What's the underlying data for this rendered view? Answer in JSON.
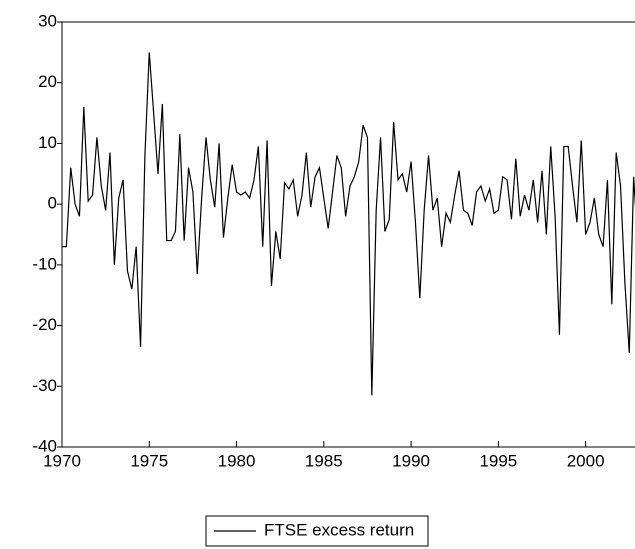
{
  "chart_data": {
    "type": "line",
    "x": [
      1970,
      1970.25,
      1970.5,
      1970.75,
      1971,
      1971.25,
      1971.5,
      1971.75,
      1972,
      1972.25,
      1972.5,
      1972.75,
      1973,
      1973.25,
      1973.5,
      1973.75,
      1974,
      1974.25,
      1974.5,
      1974.75,
      1975,
      1975.25,
      1975.5,
      1975.75,
      1976,
      1976.25,
      1976.5,
      1976.75,
      1977,
      1977.25,
      1977.5,
      1977.75,
      1978,
      1978.25,
      1978.5,
      1978.75,
      1979,
      1979.25,
      1979.5,
      1979.75,
      1980,
      1980.25,
      1980.5,
      1980.75,
      1981,
      1981.25,
      1981.5,
      1981.75,
      1982,
      1982.25,
      1982.5,
      1982.75,
      1983,
      1983.25,
      1983.5,
      1983.75,
      1984,
      1984.25,
      1984.5,
      1984.75,
      1985,
      1985.25,
      1985.5,
      1985.75,
      1986,
      1986.25,
      1986.5,
      1986.75,
      1987,
      1987.25,
      1987.5,
      1987.75,
      1988,
      1988.25,
      1988.5,
      1988.75,
      1989,
      1989.25,
      1989.5,
      1989.75,
      1990,
      1990.25,
      1990.5,
      1990.75,
      1991,
      1991.25,
      1991.5,
      1991.75,
      1992,
      1992.25,
      1992.5,
      1992.75,
      1993,
      1993.25,
      1993.5,
      1993.75,
      1994,
      1994.25,
      1994.5,
      1994.75,
      1995,
      1995.25,
      1995.5,
      1995.75,
      1996,
      1996.25,
      1996.5,
      1996.75,
      1997,
      1997.25,
      1997.5,
      1997.75,
      1998,
      1998.25,
      1998.5,
      1998.75,
      1999,
      1999.25,
      1999.5,
      1999.75,
      2000,
      2000.25,
      2000.5,
      2000.75,
      2001,
      2001.25,
      2001.5,
      2001.75,
      2002,
      2002.25,
      2002.5,
      2002.75,
      2003
    ],
    "series": [
      {
        "name": "FTSE excess return",
        "color": "#000000",
        "values": [
          -7,
          -7,
          6,
          0,
          -2,
          16,
          0.5,
          1.5,
          11,
          3,
          -1,
          8.5,
          -10,
          1,
          4,
          -11,
          -14,
          -7,
          -23.5,
          8,
          25,
          15,
          5,
          16.5,
          -6,
          -6,
          -4.5,
          11.5,
          -6,
          6,
          2,
          -11.5,
          1,
          11,
          4,
          -0.5,
          10,
          -5.5,
          1,
          6.5,
          2,
          1.5,
          2,
          1,
          4,
          9.5,
          -7,
          10.5,
          -13.5,
          -4.5,
          -9,
          3.5,
          2.5,
          4,
          -2,
          1.5,
          8.5,
          -0.5,
          4.5,
          6,
          1,
          -4,
          2,
          8,
          6,
          -2,
          3,
          4.5,
          7,
          13,
          11,
          -31.5,
          -1,
          11,
          -4.5,
          -2.5,
          13.5,
          4,
          5,
          2,
          7,
          -3,
          -15.5,
          -1,
          8,
          -1,
          1,
          -7,
          -1.5,
          -3,
          1.5,
          5.5,
          -1,
          -1.5,
          -3.5,
          2,
          3,
          0.5,
          2.5,
          -1.5,
          -1,
          4.5,
          4,
          -2.5,
          7.5,
          -2,
          1.5,
          -1,
          4,
          -3,
          5.5,
          -5,
          9.5,
          -2,
          -21.5,
          9.5,
          9.5,
          3,
          -3,
          10.5,
          -5,
          -3,
          1,
          -5,
          -7,
          4,
          -16.5,
          8.5,
          3,
          -13,
          -24.5,
          4.5,
          -7
        ]
      }
    ],
    "xlim": [
      1970,
      2003
    ],
    "xticks": [
      1970,
      1975,
      1980,
      1985,
      1990,
      1995,
      2000
    ],
    "ylim": [
      -40,
      30
    ],
    "yticks": [
      -40,
      -30,
      -20,
      -10,
      0,
      10,
      20,
      30
    ],
    "legend": "bottom"
  }
}
